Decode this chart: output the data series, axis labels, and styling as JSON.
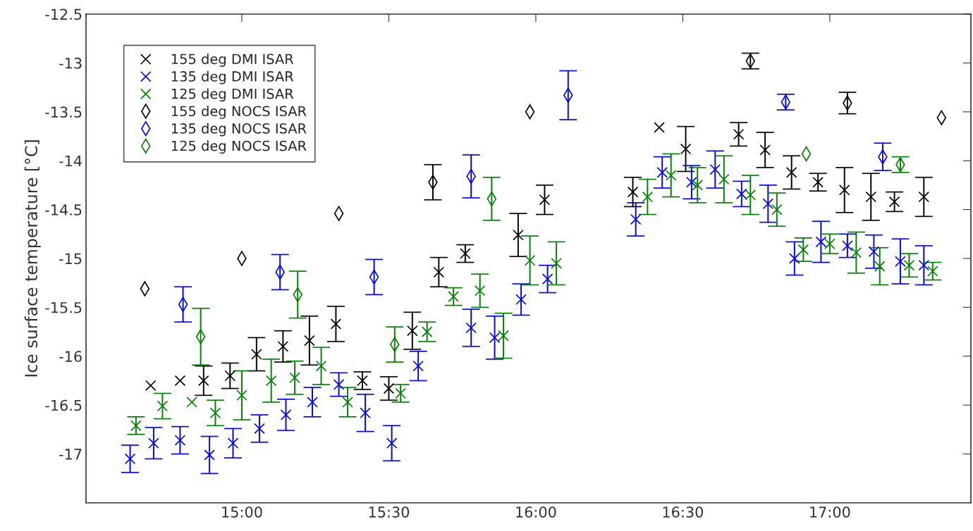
{
  "chart_data": {
    "type": "scatter",
    "ylabel": "Ice surface temperature [°C]",
    "xlim": [
      14.47,
      17.48
    ],
    "ylim": [
      -17.5,
      -12.5
    ],
    "xticks": [
      {
        "value": 15,
        "label": "15:00"
      },
      {
        "value": 15.5,
        "label": "15:30"
      },
      {
        "value": 16,
        "label": "16:00"
      },
      {
        "value": 16.5,
        "label": "16:30"
      },
      {
        "value": 17,
        "label": "17:00"
      }
    ],
    "yticks": [
      -17,
      -16.5,
      -16,
      -15.5,
      -15,
      -14.5,
      -14,
      -13.5,
      -13,
      -12.5
    ],
    "grid": false,
    "legend": "top left",
    "series": [
      {
        "name": "155 deg DMI ISAR",
        "color": "#000000",
        "marker": "cross",
        "x": [
          14.69,
          14.79,
          14.87,
          14.96,
          15.05,
          15.14,
          15.23,
          15.32,
          15.41,
          15.5,
          15.58,
          15.67,
          15.76,
          15.94,
          16.03,
          16.33,
          16.42,
          16.51,
          16.69,
          16.78,
          16.87,
          16.96,
          17.05,
          17.14,
          17.22,
          17.32
        ],
        "values": [
          -16.3,
          -16.25,
          -16.25,
          -16.2,
          -15.98,
          -15.9,
          -15.84,
          -15.67,
          -16.25,
          -16.33,
          -15.74,
          -15.14,
          -14.95,
          -14.76,
          -14.4,
          -14.32,
          -13.66,
          -13.88,
          -13.73,
          -13.89,
          -14.12,
          -14.22,
          -14.3,
          -14.37,
          -14.42,
          -14.37
        ],
        "errors": [
          null,
          null,
          0.15,
          0.13,
          0.17,
          0.16,
          0.25,
          0.18,
          0.09,
          0.12,
          0.19,
          0.15,
          0.09,
          0.22,
          0.15,
          0.15,
          null,
          0.23,
          0.12,
          0.18,
          0.17,
          0.09,
          0.23,
          0.24,
          0.1,
          0.2
        ]
      },
      {
        "name": "135 deg DMI ISAR",
        "color": "#0000ff",
        "marker": "cross",
        "x": [
          14.62,
          14.7,
          14.79,
          14.89,
          14.97,
          15.06,
          15.15,
          15.24,
          15.33,
          15.42,
          15.51,
          15.6,
          15.78,
          15.86,
          15.95,
          16.04,
          16.34,
          16.43,
          16.53,
          16.61,
          16.7,
          16.79,
          16.88,
          16.97,
          17.06,
          17.15,
          17.24,
          17.32
        ],
        "values": [
          -17.05,
          -16.89,
          -16.86,
          -17.01,
          -16.89,
          -16.74,
          -16.6,
          -16.47,
          -16.29,
          -16.58,
          -16.89,
          -16.1,
          -15.71,
          -15.81,
          -15.42,
          -15.21,
          -14.6,
          -14.12,
          -14.22,
          -14.09,
          -14.34,
          -14.44,
          -15.0,
          -14.83,
          -14.87,
          -14.93,
          -15.03,
          -15.07
        ],
        "errors": [
          0.14,
          0.16,
          0.14,
          0.19,
          0.15,
          0.14,
          0.16,
          0.15,
          0.12,
          0.19,
          0.18,
          0.15,
          0.19,
          0.22,
          0.16,
          0.14,
          0.17,
          0.16,
          0.17,
          0.19,
          0.13,
          0.19,
          0.17,
          0.21,
          0.12,
          0.17,
          0.23,
          0.2
        ]
      },
      {
        "name": "125 deg DMI ISAR",
        "color": "#008000",
        "marker": "cross",
        "x": [
          14.64,
          14.73,
          14.83,
          14.91,
          15.0,
          15.1,
          15.18,
          15.27,
          15.36,
          15.54,
          15.63,
          15.72,
          15.81,
          15.89,
          15.98,
          16.07,
          16.38,
          16.46,
          16.55,
          16.64,
          16.73,
          16.82,
          16.91,
          17.0,
          17.09,
          17.17,
          17.27,
          17.35
        ],
        "values": [
          -16.71,
          -16.51,
          -16.47,
          -16.58,
          -16.4,
          -16.25,
          -16.22,
          -16.1,
          -16.47,
          -16.38,
          -15.75,
          -15.39,
          -15.33,
          -15.79,
          -15.02,
          -15.05,
          -14.37,
          -14.15,
          -14.25,
          -14.19,
          -14.35,
          -14.5,
          -14.91,
          -14.85,
          -14.94,
          -15.08,
          -15.07,
          -15.13
        ],
        "errors": [
          0.09,
          0.13,
          null,
          0.13,
          0.25,
          0.22,
          0.17,
          0.19,
          0.15,
          0.09,
          0.1,
          0.09,
          0.17,
          0.23,
          0.25,
          0.22,
          0.18,
          0.22,
          0.18,
          0.24,
          0.2,
          0.17,
          0.12,
          0.1,
          0.21,
          0.19,
          0.12,
          0.09
        ]
      },
      {
        "name": "155 deg NOCS ISAR",
        "color": "#000000",
        "marker": "diamond",
        "x": [
          14.67,
          15.0,
          15.33,
          15.65,
          15.98,
          16.73,
          17.06,
          17.38
        ],
        "values": [
          -15.31,
          -15.0,
          -14.54,
          -14.22,
          -13.5,
          -12.98,
          -13.41,
          -13.56
        ],
        "errors": [
          null,
          null,
          null,
          0.18,
          null,
          0.08,
          0.11,
          null
        ]
      },
      {
        "name": "135 deg NOCS ISAR",
        "color": "#0000ff",
        "marker": "diamond",
        "x": [
          14.8,
          15.13,
          15.45,
          15.78,
          16.11,
          16.85,
          17.18
        ],
        "values": [
          -15.47,
          -15.14,
          -15.19,
          -14.16,
          -13.33,
          -13.4,
          -13.96
        ],
        "errors": [
          0.18,
          0.18,
          0.18,
          0.22,
          0.25,
          0.08,
          0.14
        ]
      },
      {
        "name": "125 deg NOCS ISAR",
        "color": "#008000",
        "marker": "diamond",
        "x": [
          14.86,
          15.19,
          15.52,
          15.85,
          16.92,
          17.24
        ],
        "values": [
          -15.8,
          -15.37,
          -15.88,
          -14.39,
          -13.93,
          -14.04
        ],
        "errors": [
          0.29,
          0.24,
          0.18,
          0.22,
          null,
          0.08
        ]
      }
    ]
  }
}
